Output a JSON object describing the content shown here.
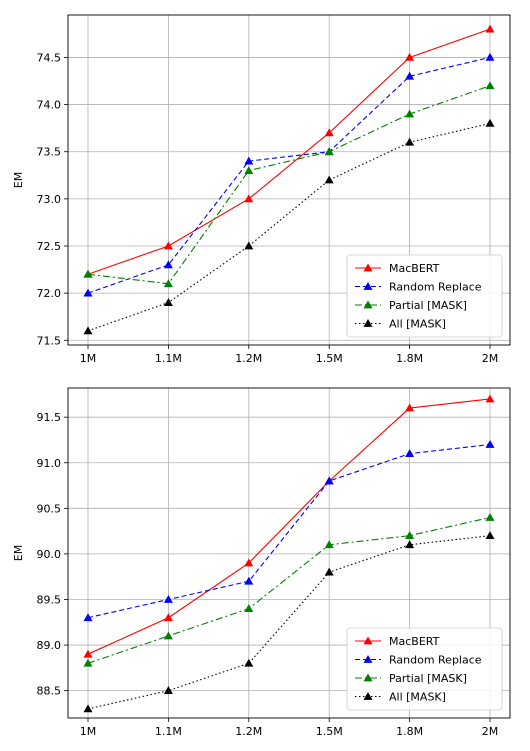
{
  "chart_data": [
    {
      "type": "line",
      "categories": [
        "1M",
        "1.1M",
        "1.2M",
        "1.5M",
        "1.8M",
        "2M"
      ],
      "ylabel": "EM",
      "ylim": [
        71.45,
        74.95
      ],
      "yticks": [
        "71.5",
        "72.0",
        "72.5",
        "73.0",
        "73.5",
        "74.0",
        "74.5"
      ],
      "grid": true,
      "legend": "lower-right",
      "series": [
        {
          "name": "MacBERT",
          "values": [
            72.2,
            72.5,
            73.0,
            73.7,
            74.5,
            74.8
          ],
          "color": "#ff0000",
          "dash": "solid"
        },
        {
          "name": "Random Replace",
          "values": [
            72.0,
            72.3,
            73.4,
            73.5,
            74.3,
            74.5
          ],
          "color": "#0000ff",
          "dash": "dashed"
        },
        {
          "name": "Partial [MASK]",
          "values": [
            72.2,
            72.1,
            73.3,
            73.5,
            73.9,
            74.2
          ],
          "color": "#008000",
          "dash": "dashdot"
        },
        {
          "name": "All [MASK]",
          "values": [
            71.6,
            71.9,
            72.5,
            73.2,
            73.6,
            73.8
          ],
          "color": "#000000",
          "dash": "dotted"
        }
      ]
    },
    {
      "type": "line",
      "categories": [
        "1M",
        "1.1M",
        "1.2M",
        "1.5M",
        "1.8M",
        "2M"
      ],
      "ylabel": "EM",
      "ylim": [
        88.2,
        91.82
      ],
      "yticks": [
        "88.5",
        "89.0",
        "89.5",
        "90.0",
        "90.5",
        "91.0",
        "91.5"
      ],
      "grid": true,
      "legend": "lower-right",
      "series": [
        {
          "name": "MacBERT",
          "values": [
            88.9,
            89.3,
            89.9,
            90.8,
            91.6,
            91.7
          ],
          "color": "#ff0000",
          "dash": "solid"
        },
        {
          "name": "Random Replace",
          "values": [
            89.3,
            89.5,
            89.7,
            90.8,
            91.1,
            91.2
          ],
          "color": "#0000ff",
          "dash": "dashed"
        },
        {
          "name": "Partial [MASK]",
          "values": [
            88.8,
            89.1,
            89.4,
            90.1,
            90.2,
            90.4
          ],
          "color": "#008000",
          "dash": "dashdot"
        },
        {
          "name": "All [MASK]",
          "values": [
            88.3,
            88.5,
            88.8,
            89.8,
            90.1,
            90.2
          ],
          "color": "#000000",
          "dash": "dotted"
        }
      ]
    }
  ]
}
